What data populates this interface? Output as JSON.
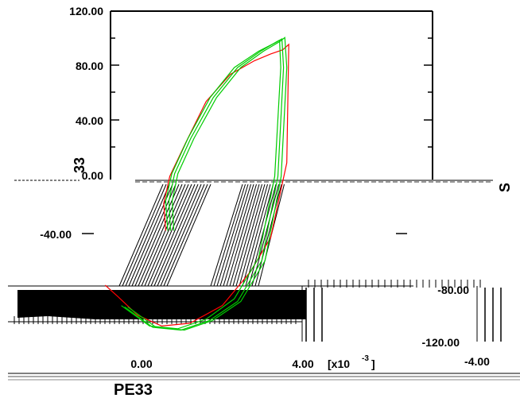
{
  "chart_data": {
    "type": "line",
    "title": "",
    "xlabel": "PE33",
    "ylabel": "33",
    "x_unit_label": "[x10",
    "x_unit_exponent": "-3",
    "x_ticks": [
      {
        "label": "0.00",
        "value": 0
      },
      {
        "label": "4.00",
        "value": 4
      }
    ],
    "y_ticks": [
      {
        "label": "120.00",
        "value": 120
      },
      {
        "label": "80.00",
        "value": 80
      },
      {
        "label": "40.00",
        "value": 40
      },
      {
        "label": "0.00",
        "value": 0
      },
      {
        "label": "-40.00",
        "value": -40
      }
    ],
    "overlap_ticks": [
      {
        "label": "-80.00",
        "value": -80
      },
      {
        "label": "-120.00",
        "value": -120
      },
      {
        "label": "-4.00",
        "value": -4
      }
    ],
    "right_glyph": "S",
    "xlim": [
      -1.2,
      4.6
    ],
    "ylim": [
      -120,
      120
    ],
    "series": [
      {
        "color": "#ff0000",
        "x": [
          0.6,
          0.55,
          0.7,
          1.1,
          1.6,
          2.2,
          2.8,
          3.2,
          3.5,
          3.65,
          3.6,
          3.2,
          2.7,
          2.0,
          1.2,
          0.5,
          -0.1,
          -0.6,
          -0.9
        ],
        "y": [
          -40,
          -20,
          0,
          25,
          55,
          75,
          85,
          90,
          93,
          97,
          10,
          -45,
          -70,
          -95,
          -108,
          -110,
          -102,
          -88,
          -80
        ]
      },
      {
        "color": "#00cc00",
        "x": [
          0.65,
          0.6,
          0.75,
          1.15,
          1.7,
          2.3,
          2.9,
          3.3,
          3.42,
          3.45,
          3.3,
          2.9,
          2.3,
          1.6,
          0.9,
          0.2,
          -0.5
        ],
        "y": [
          -40,
          -18,
          2,
          28,
          58,
          80,
          92,
          98,
          100,
          80,
          0,
          -60,
          -90,
          -105,
          -112,
          -110,
          -95
        ]
      },
      {
        "color": "#00cc00",
        "x": [
          0.72,
          0.68,
          0.82,
          1.22,
          1.78,
          2.38,
          2.95,
          3.35,
          3.48,
          3.52,
          3.38,
          2.98,
          2.38,
          1.68,
          0.98,
          0.28,
          -0.42
        ],
        "y": [
          -40,
          -18,
          2,
          28,
          58,
          80,
          92,
          99,
          101,
          80,
          0,
          -62,
          -92,
          -106,
          -113,
          -111,
          -96
        ]
      },
      {
        "color": "#00cc00",
        "x": [
          0.8,
          0.76,
          0.9,
          1.3,
          1.86,
          2.46,
          3.02,
          3.42,
          3.55,
          3.6,
          3.46,
          3.06,
          2.46,
          1.76,
          1.06,
          0.36,
          -0.34
        ],
        "y": [
          -40,
          -18,
          2,
          28,
          58,
          80,
          92,
          99,
          102,
          80,
          0,
          -62,
          -92,
          -106,
          -113,
          -111,
          -96
        ]
      }
    ]
  }
}
